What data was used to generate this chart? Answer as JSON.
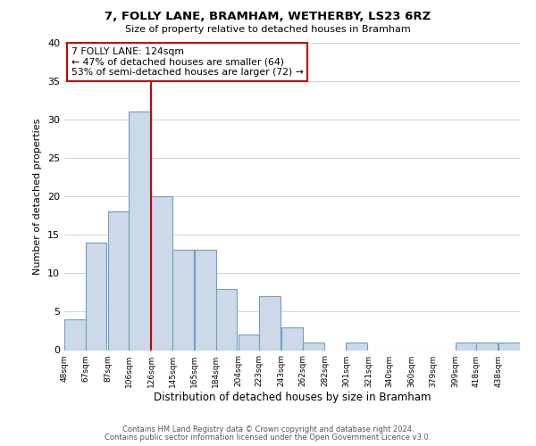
{
  "title": "7, FOLLY LANE, BRAMHAM, WETHERBY, LS23 6RZ",
  "subtitle": "Size of property relative to detached houses in Bramham",
  "xlabel": "Distribution of detached houses by size in Bramham",
  "ylabel": "Number of detached properties",
  "bar_color": "#ccd9e8",
  "bar_edgecolor": "#6fa0c0",
  "bin_labels": [
    "48sqm",
    "67sqm",
    "87sqm",
    "106sqm",
    "126sqm",
    "145sqm",
    "165sqm",
    "184sqm",
    "204sqm",
    "223sqm",
    "243sqm",
    "262sqm",
    "282sqm",
    "301sqm",
    "321sqm",
    "340sqm",
    "360sqm",
    "379sqm",
    "399sqm",
    "418sqm",
    "438sqm"
  ],
  "bin_edges": [
    48,
    67,
    87,
    106,
    126,
    145,
    165,
    184,
    204,
    223,
    243,
    262,
    282,
    301,
    321,
    340,
    360,
    379,
    399,
    418,
    438
  ],
  "values": [
    4,
    14,
    18,
    31,
    20,
    13,
    13,
    8,
    2,
    7,
    3,
    1,
    0,
    1,
    0,
    0,
    0,
    0,
    1,
    1,
    1
  ],
  "ylim": [
    0,
    40
  ],
  "yticks": [
    0,
    5,
    10,
    15,
    20,
    25,
    30,
    35,
    40
  ],
  "vline_x": 126,
  "vline_color": "#cc0000",
  "annotation_title": "7 FOLLY LANE: 124sqm",
  "annotation_line1": "← 47% of detached houses are smaller (64)",
  "annotation_line2": "53% of semi-detached houses are larger (72) →",
  "annotation_box_color": "#ffffff",
  "annotation_box_edgecolor": "#cc0000",
  "footer1": "Contains HM Land Registry data © Crown copyright and database right 2024.",
  "footer2": "Contains public sector information licensed under the Open Government Licence v3.0.",
  "background_color": "#ffffff",
  "grid_color": "#c8d4e0"
}
